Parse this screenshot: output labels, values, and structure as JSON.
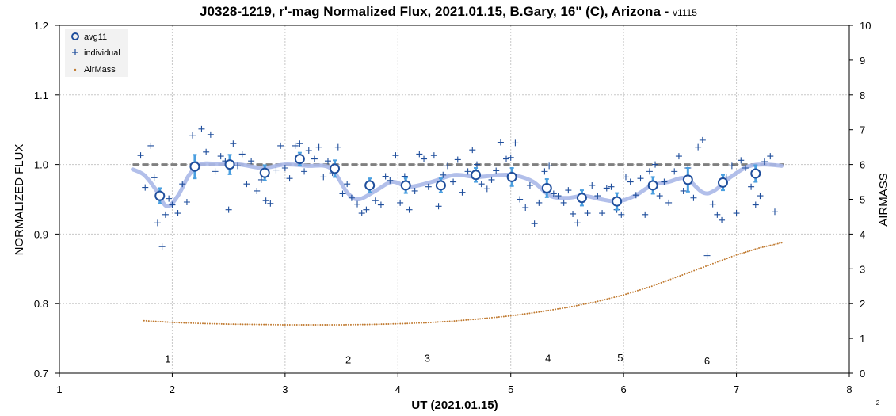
{
  "chart_data": {
    "type": "scatter",
    "title": "J0328-1219, r'-mag Normalized Flux, 2021.01.15, B.Gary, 16\" (C), Arizona - ",
    "title_version": "v1115",
    "xlabel": "UT (2021.01.15)",
    "ylabel": "NORMALIZED FLUX",
    "y2label": "AIRMASS",
    "xlim": [
      1,
      8
    ],
    "ylim": [
      0.7,
      1.2
    ],
    "y2lim": [
      0,
      10
    ],
    "x_ticks": [
      "1",
      "2",
      "3",
      "4",
      "5",
      "6",
      "7",
      "8"
    ],
    "y_ticks": [
      "0.7",
      "0.8",
      "0.9",
      "1.0",
      "1.1",
      "1.2"
    ],
    "y2_ticks": [
      "0",
      "1",
      "2",
      "3",
      "4",
      "5",
      "6",
      "7",
      "8",
      "9",
      "10"
    ],
    "grid": true,
    "legend_position": "top-left",
    "corner_note": "2",
    "reference_line": {
      "y": 1.0,
      "color": "#808080"
    },
    "colors": {
      "avg": "#1f4e9c",
      "individual": "#1f4e9c",
      "error_bar": "#4a9fe0",
      "smooth": "#aab8e8",
      "airmass": "#c07a30"
    },
    "series": [
      {
        "name": "avg11",
        "type": "scatter",
        "x": [
          1.89,
          2.2,
          2.51,
          2.82,
          3.13,
          3.44,
          3.75,
          4.07,
          4.38,
          4.69,
          5.01,
          5.32,
          5.63,
          5.94,
          6.26,
          6.57,
          6.88,
          7.17
        ],
        "y": [
          0.955,
          0.997,
          1.0,
          0.988,
          1.008,
          0.994,
          0.97,
          0.97,
          0.97,
          0.985,
          0.982,
          0.966,
          0.952,
          0.947,
          0.97,
          0.978,
          0.974,
          0.987
        ],
        "err": [
          0.011,
          0.017,
          0.014,
          0.011,
          0.009,
          0.012,
          0.01,
          0.011,
          0.01,
          0.01,
          0.013,
          0.013,
          0.011,
          0.012,
          0.012,
          0.017,
          0.011,
          0.012
        ]
      },
      {
        "name": "individual",
        "type": "scatter",
        "x": [
          1.72,
          1.76,
          1.81,
          1.84,
          1.87,
          1.91,
          1.94,
          1.97,
          2.0,
          2.05,
          2.09,
          2.13,
          2.18,
          2.22,
          2.26,
          2.3,
          2.34,
          2.38,
          2.43,
          2.47,
          2.5,
          2.54,
          2.58,
          2.62,
          2.66,
          2.7,
          2.75,
          2.79,
          2.83,
          2.87,
          2.92,
          2.96,
          3.0,
          3.04,
          3.09,
          3.13,
          3.17,
          3.21,
          3.26,
          3.3,
          3.34,
          3.38,
          3.42,
          3.47,
          3.51,
          3.55,
          3.59,
          3.64,
          3.68,
          3.72,
          3.76,
          3.8,
          3.85,
          3.89,
          3.93,
          3.98,
          4.02,
          4.06,
          4.1,
          4.15,
          4.19,
          4.23,
          4.27,
          4.32,
          4.36,
          4.4,
          4.44,
          4.49,
          4.53,
          4.57,
          4.62,
          4.66,
          4.7,
          4.74,
          4.79,
          4.83,
          4.87,
          4.91,
          4.96,
          5.0,
          5.04,
          5.08,
          5.13,
          5.17,
          5.21,
          5.25,
          5.3,
          5.34,
          5.38,
          5.42,
          5.47,
          5.51,
          5.55,
          5.59,
          5.64,
          5.68,
          5.72,
          5.77,
          5.81,
          5.85,
          5.89,
          5.94,
          5.98,
          6.02,
          6.06,
          6.11,
          6.15,
          6.19,
          6.23,
          6.28,
          6.32,
          6.36,
          6.4,
          6.45,
          6.49,
          6.53,
          6.57,
          6.62,
          6.66,
          6.7,
          6.74,
          6.79,
          6.83,
          6.87,
          6.91,
          6.96,
          7.0,
          7.04,
          7.08,
          7.13,
          7.17,
          7.21,
          7.25,
          7.3,
          7.34
        ],
        "y": [
          1.013,
          0.967,
          1.027,
          0.981,
          0.916,
          0.882,
          0.928,
          0.951,
          0.942,
          0.93,
          0.972,
          0.946,
          1.042,
          1.0,
          1.051,
          1.018,
          1.043,
          0.99,
          1.012,
          1.005,
          0.935,
          1.03,
          0.998,
          1.015,
          0.972,
          1.005,
          0.962,
          0.978,
          0.948,
          0.944,
          0.992,
          1.027,
          0.995,
          0.98,
          1.027,
          1.03,
          0.99,
          1.02,
          1.008,
          1.025,
          0.982,
          1.005,
          0.988,
          1.025,
          0.958,
          0.972,
          0.952,
          0.943,
          0.93,
          0.935,
          0.97,
          0.948,
          0.942,
          0.983,
          0.977,
          1.013,
          0.945,
          0.983,
          0.935,
          0.962,
          1.015,
          1.008,
          0.968,
          1.013,
          0.94,
          0.985,
          0.998,
          0.975,
          1.007,
          0.96,
          0.99,
          1.021,
          1.0,
          0.972,
          0.965,
          0.978,
          0.991,
          1.032,
          1.008,
          1.01,
          1.031,
          0.95,
          0.938,
          0.97,
          0.915,
          0.945,
          0.99,
          0.998,
          0.958,
          0.955,
          0.945,
          0.963,
          0.929,
          0.916,
          0.95,
          0.93,
          0.97,
          0.955,
          0.93,
          0.966,
          0.968,
          0.935,
          0.928,
          0.982,
          0.975,
          0.956,
          0.98,
          0.928,
          0.99,
          1.0,
          0.955,
          0.975,
          0.945,
          0.99,
          1.012,
          0.962,
          0.995,
          0.952,
          1.025,
          1.035,
          0.869,
          0.943,
          0.928,
          0.92,
          0.982,
          0.998,
          0.93,
          1.006,
          0.995,
          0.968,
          0.942,
          0.955,
          1.004,
          1.012,
          0.932
        ]
      },
      {
        "name": "AirMass",
        "type": "line",
        "x": [
          1.75,
          2.0,
          2.25,
          2.5,
          2.75,
          3.0,
          3.25,
          3.5,
          3.75,
          4.0,
          4.25,
          4.5,
          4.75,
          5.0,
          5.25,
          5.5,
          5.75,
          6.0,
          6.25,
          6.5,
          6.75,
          7.0,
          7.2,
          7.4
        ],
        "y": [
          1.51,
          1.46,
          1.43,
          1.41,
          1.4,
          1.39,
          1.39,
          1.39,
          1.4,
          1.42,
          1.45,
          1.5,
          1.57,
          1.65,
          1.76,
          1.89,
          2.05,
          2.25,
          2.5,
          2.8,
          3.1,
          3.4,
          3.6,
          3.75
        ]
      },
      {
        "type": "line",
        "x": [
          1.65,
          1.75,
          1.85,
          1.95,
          2.05,
          2.15,
          2.25,
          2.4,
          2.6,
          2.8,
          3.0,
          3.2,
          3.4,
          3.55,
          3.65,
          3.8,
          3.95,
          4.1,
          4.3,
          4.5,
          4.7,
          4.9,
          5.05,
          5.2,
          5.35,
          5.5,
          5.65,
          5.8,
          5.95,
          6.1,
          6.25,
          6.4,
          6.55,
          6.7,
          6.8,
          6.95,
          7.1,
          7.25,
          7.4
        ],
        "y": [
          0.993,
          0.985,
          0.965,
          0.94,
          0.955,
          0.985,
          1.0,
          1.001,
          1.0,
          0.995,
          1.0,
          0.998,
          0.995,
          0.96,
          0.95,
          0.962,
          0.975,
          0.968,
          0.975,
          0.985,
          0.982,
          0.985,
          0.984,
          0.975,
          0.955,
          0.952,
          0.955,
          0.95,
          0.947,
          0.955,
          0.97,
          0.975,
          0.98,
          0.96,
          0.962,
          0.982,
          0.997,
          1.0,
          0.998
        ]
      }
    ],
    "annotations": [
      {
        "x": 1.96,
        "y": 0.721,
        "text": "1"
      },
      {
        "x": 3.56,
        "y": 0.72,
        "text": "2"
      },
      {
        "x": 4.26,
        "y": 0.722,
        "text": "3"
      },
      {
        "x": 5.33,
        "y": 0.722,
        "text": "4"
      },
      {
        "x": 5.97,
        "y": 0.723,
        "text": "5"
      },
      {
        "x": 6.74,
        "y": 0.718,
        "text": "6"
      }
    ]
  }
}
